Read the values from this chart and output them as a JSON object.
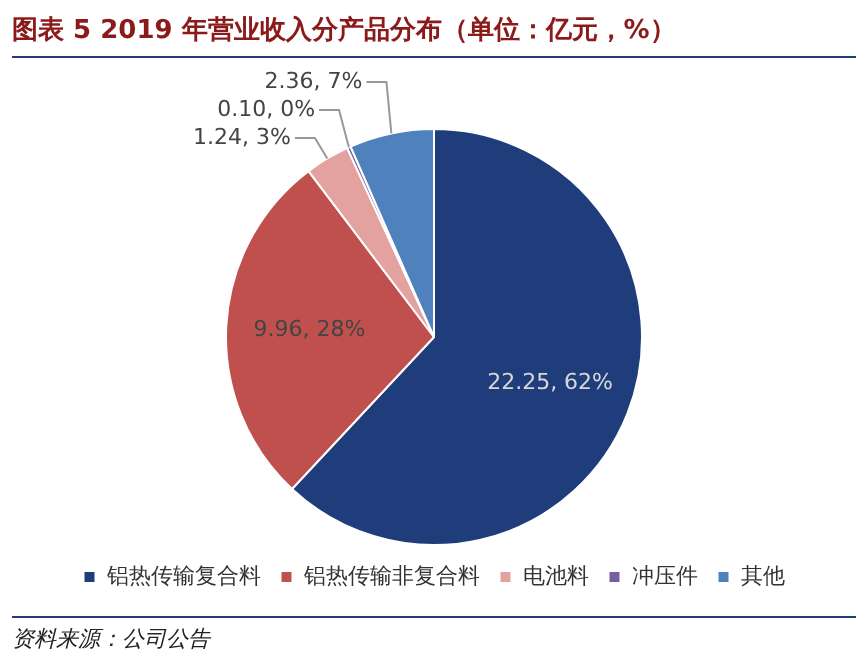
{
  "chart_data": {
    "type": "pie",
    "title": "图表 5   2019 年营业收入分产品分布（单位：亿元，%）",
    "categories": [
      "铝热传输复合料",
      "铝热传输非复合料",
      "电池料",
      "冲压件",
      "其他"
    ],
    "values": [
      22.25,
      9.96,
      1.24,
      0.1,
      2.36
    ],
    "colors": [
      "#1f3d7a",
      "#c0504d",
      "#e3a19f",
      "#7a5ca0",
      "#4f81bd"
    ],
    "value_labels": [
      "22.25, 62%",
      "9.96, 28%",
      "1.24, 3%",
      "0.10, 0%",
      "2.36, 7%"
    ],
    "legend": "bottom",
    "annotations": [
      "资料来源：公司公告"
    ]
  }
}
